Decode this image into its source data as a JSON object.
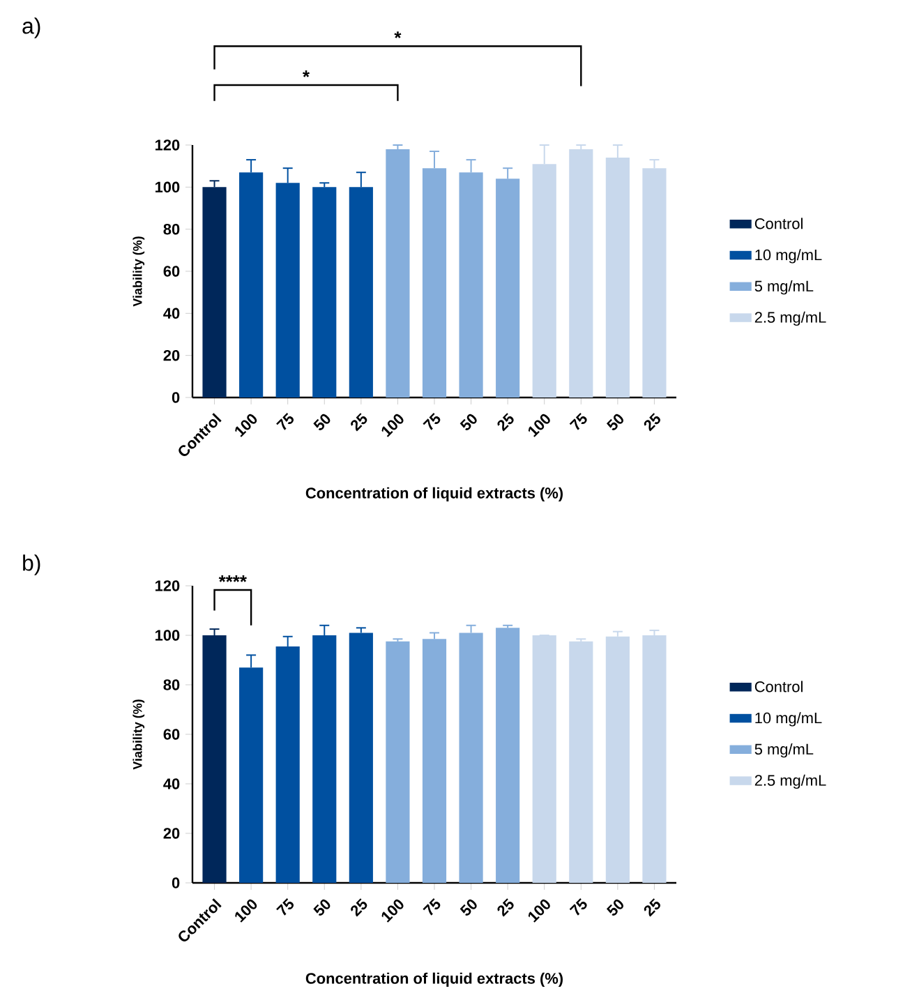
{
  "chart_data": [
    {
      "type": "bar",
      "title": "a)",
      "xlabel": "Concentration of liquid extracts (%)",
      "ylabel": "Viability (%)",
      "categories": [
        "Control",
        "100",
        "75",
        "50",
        "25",
        "100",
        "75",
        "50",
        "25",
        "100",
        "75",
        "50",
        "25"
      ],
      "series": [
        {
          "name": "Control",
          "color": "#00275a",
          "values": [
            100,
            null,
            null,
            null,
            null,
            null,
            null,
            null,
            null,
            null,
            null,
            null,
            null
          ],
          "errors": [
            3,
            null,
            null,
            null,
            null,
            null,
            null,
            null,
            null,
            null,
            null,
            null,
            null
          ]
        },
        {
          "name": "10 mg/mL",
          "color": "#0050a0",
          "values": [
            null,
            107,
            102,
            100,
            100,
            null,
            null,
            null,
            null,
            null,
            null,
            null,
            null
          ],
          "errors": [
            null,
            6,
            7,
            2,
            7,
            null,
            null,
            null,
            null,
            null,
            null,
            null,
            null
          ]
        },
        {
          "name": "5 mg/mL",
          "color": "#85aedc",
          "values": [
            null,
            null,
            null,
            null,
            null,
            118,
            109,
            107,
            104,
            null,
            null,
            null,
            null
          ],
          "errors": [
            null,
            null,
            null,
            null,
            null,
            2,
            8,
            6,
            5,
            null,
            null,
            null,
            null
          ]
        },
        {
          "name": "2.5 mg/mL",
          "color": "#c8d8ec",
          "values": [
            null,
            null,
            null,
            null,
            null,
            null,
            null,
            null,
            null,
            111,
            118,
            114,
            109
          ],
          "errors": [
            null,
            null,
            null,
            null,
            null,
            null,
            null,
            null,
            null,
            9,
            2,
            6,
            4
          ]
        }
      ],
      "ylim": [
        0,
        120
      ],
      "yticks": [
        0,
        20,
        40,
        60,
        80,
        100,
        120
      ],
      "legend": "right",
      "annotations": [
        "*",
        "*"
      ]
    },
    {
      "type": "bar",
      "title": "b)",
      "xlabel": "Concentration of liquid extracts (%)",
      "ylabel": "Viability (%)",
      "categories": [
        "Control",
        "100",
        "75",
        "50",
        "25",
        "100",
        "75",
        "50",
        "25",
        "100",
        "75",
        "50",
        "25"
      ],
      "series": [
        {
          "name": "Control",
          "color": "#00275a",
          "values": [
            100,
            null,
            null,
            null,
            null,
            null,
            null,
            null,
            null,
            null,
            null,
            null,
            null
          ],
          "errors": [
            2.5,
            null,
            null,
            null,
            null,
            null,
            null,
            null,
            null,
            null,
            null,
            null,
            null
          ]
        },
        {
          "name": "10 mg/mL",
          "color": "#0050a0",
          "values": [
            null,
            87,
            95.5,
            100,
            101,
            null,
            null,
            null,
            null,
            null,
            null,
            null,
            null
          ],
          "errors": [
            null,
            5,
            4,
            4,
            2,
            null,
            null,
            null,
            null,
            null,
            null,
            null,
            null
          ]
        },
        {
          "name": "5 mg/mL",
          "color": "#85aedc",
          "values": [
            null,
            null,
            null,
            null,
            null,
            97.5,
            98.5,
            101,
            103,
            null,
            null,
            null,
            null
          ],
          "errors": [
            null,
            null,
            null,
            null,
            null,
            1,
            2.5,
            3,
            1,
            null,
            null,
            null,
            null
          ]
        },
        {
          "name": "2.5 mg/mL",
          "color": "#c8d8ec",
          "values": [
            null,
            null,
            null,
            null,
            null,
            null,
            null,
            null,
            null,
            100,
            97.5,
            99.5,
            100
          ],
          "errors": [
            null,
            null,
            null,
            null,
            null,
            null,
            null,
            null,
            null,
            null,
            1,
            2,
            2
          ]
        }
      ],
      "ylim": [
        0,
        120
      ],
      "yticks": [
        0,
        20,
        40,
        60,
        80,
        100,
        120
      ],
      "legend": "right",
      "annotations": [
        "****"
      ]
    }
  ]
}
